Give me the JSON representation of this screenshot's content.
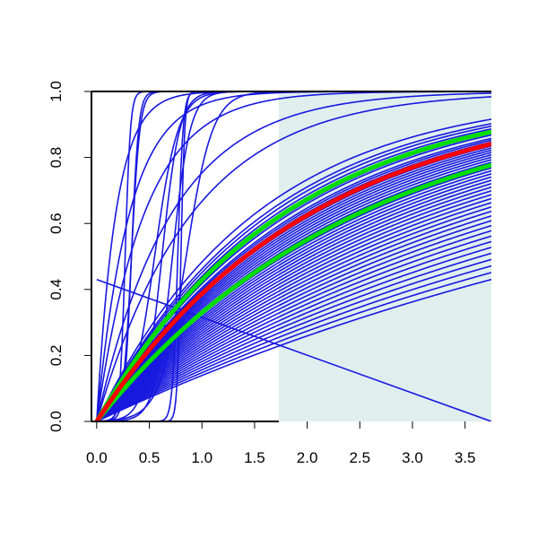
{
  "chart_data": {
    "type": "line",
    "title": "",
    "xlabel": "",
    "ylabel": "",
    "xlim": [
      -0.05,
      3.75
    ],
    "ylim": [
      0.0,
      1.0
    ],
    "xticks": [
      "0.0",
      "0.5",
      "1.0",
      "1.5",
      "2.0",
      "2.5",
      "3.0",
      "3.5"
    ],
    "yticks": [
      "0.0",
      "0.2",
      "0.4",
      "0.6",
      "0.8",
      "1.0"
    ],
    "shaded_region": {
      "x_from": 1.73,
      "x_to": 3.75,
      "color": "#e0eeee"
    },
    "colors": {
      "curves": "#1818e0",
      "highlight": "#ff0000",
      "bounds": "#00dd00",
      "axis": "#000000"
    },
    "descending_line": {
      "points": [
        [
          0.0,
          0.43
        ],
        [
          3.75,
          0.0
        ]
      ]
    },
    "step_curves": [
      {
        "center": 0.33,
        "steepness": 25
      },
      {
        "center": 0.27,
        "steepness": 40
      },
      {
        "center": 0.33,
        "steepness": 30,
        "floor": 0.0
      },
      {
        "center": 0.55,
        "steepness": 9
      },
      {
        "center": 0.62,
        "steepness": 12
      },
      {
        "center": 0.77,
        "steepness": 40
      },
      {
        "center": 0.8,
        "steepness": 55
      },
      {
        "center": 0.72,
        "steepness": 12
      },
      {
        "center": 0.85,
        "steepness": 8
      }
    ],
    "exp_curves_rates": [
      5.5,
      3.2,
      2.2,
      1.4,
      1.1
    ],
    "ensemble_rates": [
      0.66,
      0.62,
      0.6,
      0.58,
      0.56,
      0.55,
      0.54,
      0.52,
      0.51,
      0.5,
      0.48,
      0.47,
      0.46,
      0.45,
      0.44,
      0.43,
      0.42,
      0.41,
      0.4,
      0.39,
      0.38,
      0.37,
      0.36,
      0.35,
      0.34,
      0.33,
      0.32,
      0.31,
      0.3,
      0.29,
      0.28,
      0.27,
      0.26,
      0.25,
      0.24,
      0.23,
      0.22,
      0.21,
      0.2,
      0.19,
      0.18,
      0.17,
      0.16,
      0.15
    ],
    "highlight_rate": 0.49,
    "bound_rates": [
      0.56,
      0.4
    ]
  }
}
